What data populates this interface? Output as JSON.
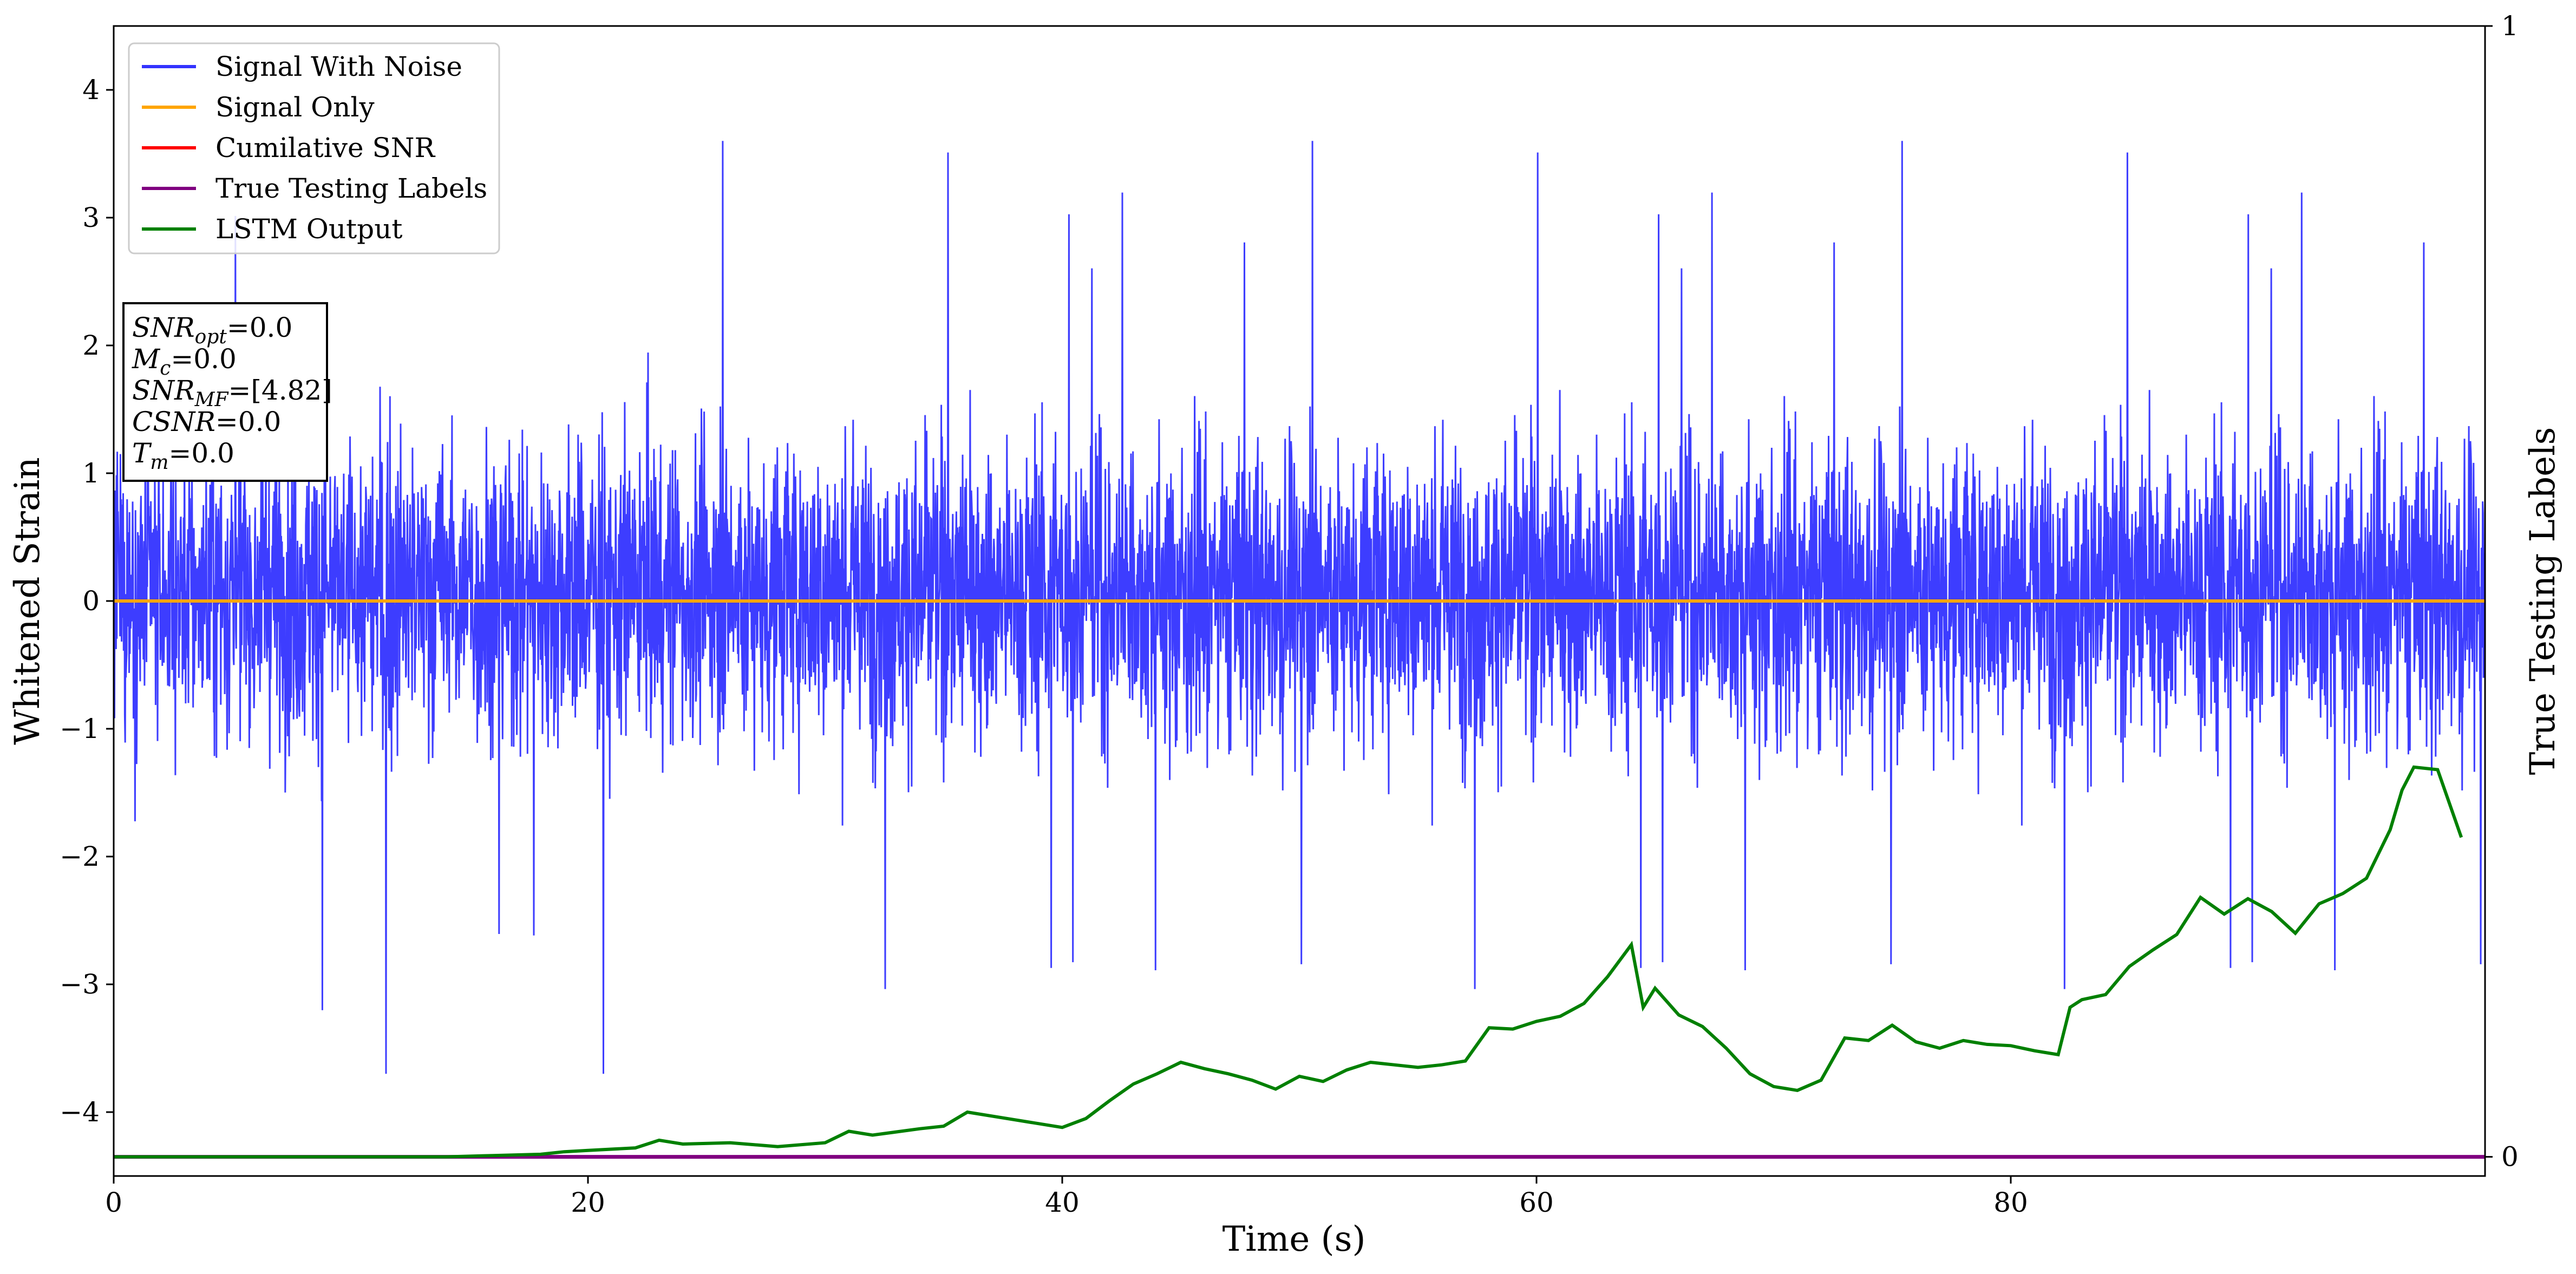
{
  "chart_data": {
    "type": "line",
    "xlabel": "Time (s)",
    "ylabel": "Whitened Strain",
    "y2label": "True Testing Labels",
    "xlim": [
      0,
      100
    ],
    "ylim": [
      -4.5,
      4.5
    ],
    "y2lim": [
      0,
      1
    ],
    "xticks": [
      "0",
      "20",
      "40",
      "60",
      "80"
    ],
    "yticks": [
      "4",
      "3",
      "2",
      "1",
      "0",
      "−1",
      "−2",
      "−3",
      "−4"
    ],
    "y2ticks": [
      "1",
      "0"
    ],
    "legend_position": "top-left",
    "legend": [
      "Signal With Noise",
      "Signal Only",
      "Cumilative SNR",
      "True Testing Labels",
      "LSTM Output"
    ],
    "colors": {
      "signal_with_noise": "#3333ff",
      "signal_only": "#ffa500",
      "cumulative_snr": "#ff0000",
      "true_labels": "#800080",
      "lstm": "#008000"
    },
    "series": [
      {
        "name": "Signal With Noise",
        "description_of_shape": "dense noise",
        "envelope_upper": 3.9,
        "envelope_lower": -3.7,
        "core_band": [
          -0.7,
          0.9
        ]
      },
      {
        "name": "Signal Only",
        "x": [
          0,
          100
        ],
        "y": [
          0,
          0
        ]
      },
      {
        "name": "True Testing Labels",
        "axis": "y2",
        "x": [
          0,
          100
        ],
        "y": [
          0,
          0
        ]
      },
      {
        "name": "LSTM Output",
        "axis": "y",
        "x": [
          0,
          5,
          10,
          14,
          16,
          18,
          19,
          20,
          22,
          23,
          24,
          26,
          28,
          30,
          31,
          32,
          34,
          35,
          36,
          38,
          40,
          41,
          42,
          43,
          44,
          45,
          46,
          47,
          48,
          49,
          50,
          51,
          52,
          53,
          54,
          55,
          56,
          57,
          58,
          59,
          60,
          61,
          62,
          63,
          64,
          64.5,
          65,
          66,
          67,
          68,
          69,
          70,
          71,
          72,
          73,
          74,
          75,
          76,
          77,
          78,
          79,
          80,
          81,
          82,
          82.5,
          83,
          84,
          85,
          86,
          87,
          88,
          89,
          90,
          91,
          92,
          93,
          94,
          95,
          96,
          96.5,
          97,
          98,
          99
        ],
        "y": [
          -4.35,
          -4.35,
          -4.35,
          -4.35,
          -4.34,
          -4.33,
          -4.31,
          -4.3,
          -4.28,
          -4.22,
          -4.25,
          -4.24,
          -4.27,
          -4.24,
          -4.15,
          -4.18,
          -4.13,
          -4.11,
          -4.0,
          -4.06,
          -4.12,
          -4.05,
          -3.91,
          -3.78,
          -3.7,
          -3.61,
          -3.66,
          -3.7,
          -3.75,
          -3.82,
          -3.72,
          -3.76,
          -3.67,
          -3.61,
          -3.63,
          -3.65,
          -3.63,
          -3.6,
          -3.34,
          -3.35,
          -3.29,
          -3.25,
          -3.15,
          -2.94,
          -2.69,
          -3.18,
          -3.03,
          -3.24,
          -3.33,
          -3.5,
          -3.7,
          -3.8,
          -3.83,
          -3.75,
          -3.42,
          -3.44,
          -3.32,
          -3.45,
          -3.5,
          -3.44,
          -3.47,
          -3.48,
          -3.52,
          -3.55,
          -3.18,
          -3.12,
          -3.08,
          -2.86,
          -2.73,
          -2.61,
          -2.32,
          -2.45,
          -2.33,
          -2.43,
          -2.6,
          -2.37,
          -2.29,
          -2.17,
          -1.79,
          -1.48,
          -1.3,
          -1.32,
          -1.85
        ]
      }
    ],
    "annotation_box": {
      "lines": [
        {
          "main": "SNR",
          "sub": "opt",
          "value": "=0.0"
        },
        {
          "main": "M",
          "sub": "c",
          "value": "=0.0"
        },
        {
          "main": "SNR",
          "sub": "MF",
          "value": "=[4.82]"
        },
        {
          "main": "CSNR",
          "sub": "",
          "value": "=0.0"
        },
        {
          "main": "T",
          "sub": "m",
          "value": "=0.0"
        }
      ]
    }
  }
}
